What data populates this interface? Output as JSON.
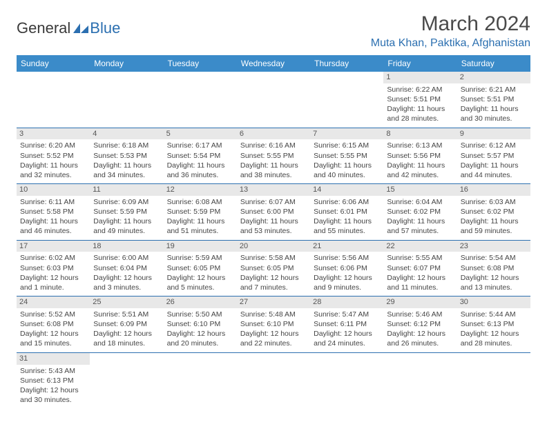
{
  "logo": {
    "general": "General",
    "blue": "Blue"
  },
  "title": "March 2024",
  "location": "Muta Khan, Paktika, Afghanistan",
  "weekdays": [
    "Sunday",
    "Monday",
    "Tuesday",
    "Wednesday",
    "Thursday",
    "Friday",
    "Saturday"
  ],
  "colors": {
    "header_bg": "#3b8bc9",
    "accent": "#2b6fb0",
    "daynum_bg": "#e8e8e8"
  },
  "weeks": [
    [
      null,
      null,
      null,
      null,
      null,
      {
        "n": "1",
        "sr": "Sunrise: 6:22 AM",
        "ss": "Sunset: 5:51 PM",
        "dl": "Daylight: 11 hours and 28 minutes."
      },
      {
        "n": "2",
        "sr": "Sunrise: 6:21 AM",
        "ss": "Sunset: 5:51 PM",
        "dl": "Daylight: 11 hours and 30 minutes."
      }
    ],
    [
      {
        "n": "3",
        "sr": "Sunrise: 6:20 AM",
        "ss": "Sunset: 5:52 PM",
        "dl": "Daylight: 11 hours and 32 minutes."
      },
      {
        "n": "4",
        "sr": "Sunrise: 6:18 AM",
        "ss": "Sunset: 5:53 PM",
        "dl": "Daylight: 11 hours and 34 minutes."
      },
      {
        "n": "5",
        "sr": "Sunrise: 6:17 AM",
        "ss": "Sunset: 5:54 PM",
        "dl": "Daylight: 11 hours and 36 minutes."
      },
      {
        "n": "6",
        "sr": "Sunrise: 6:16 AM",
        "ss": "Sunset: 5:55 PM",
        "dl": "Daylight: 11 hours and 38 minutes."
      },
      {
        "n": "7",
        "sr": "Sunrise: 6:15 AM",
        "ss": "Sunset: 5:55 PM",
        "dl": "Daylight: 11 hours and 40 minutes."
      },
      {
        "n": "8",
        "sr": "Sunrise: 6:13 AM",
        "ss": "Sunset: 5:56 PM",
        "dl": "Daylight: 11 hours and 42 minutes."
      },
      {
        "n": "9",
        "sr": "Sunrise: 6:12 AM",
        "ss": "Sunset: 5:57 PM",
        "dl": "Daylight: 11 hours and 44 minutes."
      }
    ],
    [
      {
        "n": "10",
        "sr": "Sunrise: 6:11 AM",
        "ss": "Sunset: 5:58 PM",
        "dl": "Daylight: 11 hours and 46 minutes."
      },
      {
        "n": "11",
        "sr": "Sunrise: 6:09 AM",
        "ss": "Sunset: 5:59 PM",
        "dl": "Daylight: 11 hours and 49 minutes."
      },
      {
        "n": "12",
        "sr": "Sunrise: 6:08 AM",
        "ss": "Sunset: 5:59 PM",
        "dl": "Daylight: 11 hours and 51 minutes."
      },
      {
        "n": "13",
        "sr": "Sunrise: 6:07 AM",
        "ss": "Sunset: 6:00 PM",
        "dl": "Daylight: 11 hours and 53 minutes."
      },
      {
        "n": "14",
        "sr": "Sunrise: 6:06 AM",
        "ss": "Sunset: 6:01 PM",
        "dl": "Daylight: 11 hours and 55 minutes."
      },
      {
        "n": "15",
        "sr": "Sunrise: 6:04 AM",
        "ss": "Sunset: 6:02 PM",
        "dl": "Daylight: 11 hours and 57 minutes."
      },
      {
        "n": "16",
        "sr": "Sunrise: 6:03 AM",
        "ss": "Sunset: 6:02 PM",
        "dl": "Daylight: 11 hours and 59 minutes."
      }
    ],
    [
      {
        "n": "17",
        "sr": "Sunrise: 6:02 AM",
        "ss": "Sunset: 6:03 PM",
        "dl": "Daylight: 12 hours and 1 minute."
      },
      {
        "n": "18",
        "sr": "Sunrise: 6:00 AM",
        "ss": "Sunset: 6:04 PM",
        "dl": "Daylight: 12 hours and 3 minutes."
      },
      {
        "n": "19",
        "sr": "Sunrise: 5:59 AM",
        "ss": "Sunset: 6:05 PM",
        "dl": "Daylight: 12 hours and 5 minutes."
      },
      {
        "n": "20",
        "sr": "Sunrise: 5:58 AM",
        "ss": "Sunset: 6:05 PM",
        "dl": "Daylight: 12 hours and 7 minutes."
      },
      {
        "n": "21",
        "sr": "Sunrise: 5:56 AM",
        "ss": "Sunset: 6:06 PM",
        "dl": "Daylight: 12 hours and 9 minutes."
      },
      {
        "n": "22",
        "sr": "Sunrise: 5:55 AM",
        "ss": "Sunset: 6:07 PM",
        "dl": "Daylight: 12 hours and 11 minutes."
      },
      {
        "n": "23",
        "sr": "Sunrise: 5:54 AM",
        "ss": "Sunset: 6:08 PM",
        "dl": "Daylight: 12 hours and 13 minutes."
      }
    ],
    [
      {
        "n": "24",
        "sr": "Sunrise: 5:52 AM",
        "ss": "Sunset: 6:08 PM",
        "dl": "Daylight: 12 hours and 15 minutes."
      },
      {
        "n": "25",
        "sr": "Sunrise: 5:51 AM",
        "ss": "Sunset: 6:09 PM",
        "dl": "Daylight: 12 hours and 18 minutes."
      },
      {
        "n": "26",
        "sr": "Sunrise: 5:50 AM",
        "ss": "Sunset: 6:10 PM",
        "dl": "Daylight: 12 hours and 20 minutes."
      },
      {
        "n": "27",
        "sr": "Sunrise: 5:48 AM",
        "ss": "Sunset: 6:10 PM",
        "dl": "Daylight: 12 hours and 22 minutes."
      },
      {
        "n": "28",
        "sr": "Sunrise: 5:47 AM",
        "ss": "Sunset: 6:11 PM",
        "dl": "Daylight: 12 hours and 24 minutes."
      },
      {
        "n": "29",
        "sr": "Sunrise: 5:46 AM",
        "ss": "Sunset: 6:12 PM",
        "dl": "Daylight: 12 hours and 26 minutes."
      },
      {
        "n": "30",
        "sr": "Sunrise: 5:44 AM",
        "ss": "Sunset: 6:13 PM",
        "dl": "Daylight: 12 hours and 28 minutes."
      }
    ],
    [
      {
        "n": "31",
        "sr": "Sunrise: 5:43 AM",
        "ss": "Sunset: 6:13 PM",
        "dl": "Daylight: 12 hours and 30 minutes."
      },
      null,
      null,
      null,
      null,
      null,
      null
    ]
  ]
}
